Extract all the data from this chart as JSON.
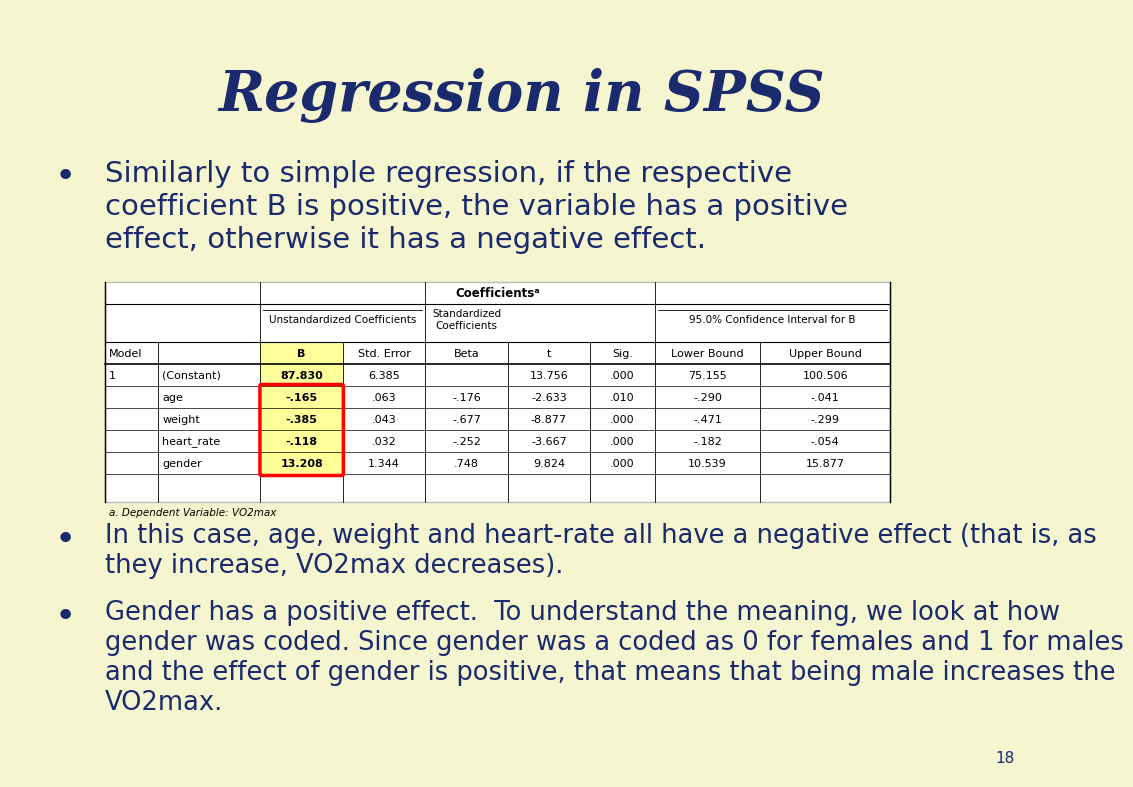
{
  "title": "Regression in SPSS",
  "bg_color": "#f5f5d0",
  "title_color": "#1a2a6c",
  "text_color": "#1a2a6c",
  "bullet1_line1": "Similarly to simple regression, if the respective",
  "bullet1_line2": "coefficient B is positive, the variable has a positive",
  "bullet1_line3": "effect, otherwise it has a negative effect.",
  "bullet2_line1": "In this case, age, weight and heart-rate all have a negative effect (that is, as",
  "bullet2_line2": "they increase, VO2max decreases).",
  "bullet3_line1": "Gender has a positive effect.  To understand the meaning, we look at how",
  "bullet3_line2": "gender was coded. Since gender was a coded as 0 for females and 1 for males",
  "bullet3_line3": "and the effect of gender is positive, that means that being male increases the",
  "bullet3_line4": "VO2max.",
  "page_number": "18",
  "table_title": "Coefficientsᵃ",
  "rows": [
    [
      "1",
      "(Constant)",
      "87.830",
      "6.385",
      "",
      "13.756",
      ".000",
      "75.155",
      "100.506"
    ],
    [
      "",
      "age",
      "-.165",
      ".063",
      "-.176",
      "-2.633",
      ".010",
      "-.290",
      "-.041"
    ],
    [
      "",
      "weight",
      "-.385",
      ".043",
      "-.677",
      "-8.877",
      ".000",
      "-.471",
      "-.299"
    ],
    [
      "",
      "heart_rate",
      "-.118",
      ".032",
      "-.252",
      "-3.667",
      ".000",
      "-.182",
      "-.054"
    ],
    [
      "",
      "gender",
      "13.208",
      "1.344",
      ".748",
      "9.824",
      ".000",
      "10.539",
      "15.877"
    ]
  ],
  "footnote": "a. Dependent Variable: VO2max",
  "highlight_color": "#ffff99",
  "table_border_color": "#cccccc",
  "table_bg": "#ffffff"
}
